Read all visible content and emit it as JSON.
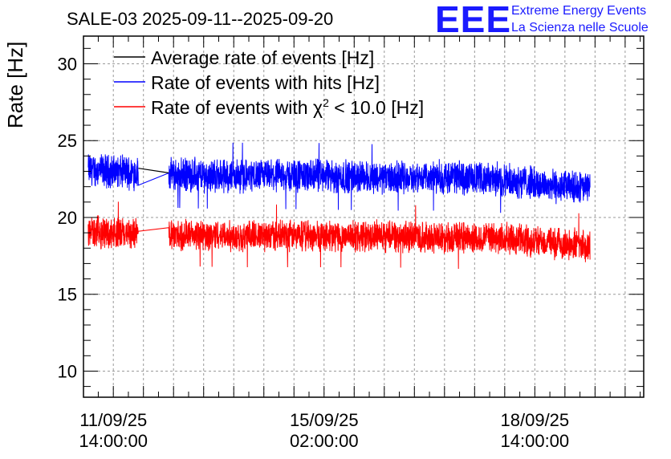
{
  "header": {
    "title": "SALE-03 2025-09-11--2025-09-20",
    "logo_text": "EEE",
    "logo_line1": "Extreme Energy Events",
    "logo_line2": "La Scienza nelle Scuole"
  },
  "chart_data": {
    "type": "line",
    "title": "SALE-03 2025-09-11--2025-09-20",
    "xlabel": "",
    "ylabel": "Rate [Hz]",
    "ylim": [
      8.3,
      31.8
    ],
    "y_ticks": [
      10,
      15,
      20,
      25,
      30
    ],
    "grid": true,
    "legend_position": "top-left",
    "x_unit": "hours since 2025-09-11 00:00",
    "xlim": [
      2.1,
      225.4
    ],
    "x_ticks": [
      {
        "value": 14,
        "label_date": "11/09/25",
        "label_time": "14:00:00"
      },
      {
        "value": 98,
        "label_date": "15/09/25",
        "label_time": "02:00:00"
      },
      {
        "value": 182,
        "label_date": "18/09/25",
        "label_time": "14:00:00"
      }
    ],
    "gap": {
      "from": 24,
      "to": 36
    },
    "series": [
      {
        "name": "Average rate of events [Hz]",
        "legend_text": "Average rate of events [Hz]",
        "color": "#000000",
        "x": [
          24,
          36
        ],
        "y": [
          23.2,
          22.9
        ]
      },
      {
        "name": "Rate of events with hits [Hz]",
        "legend_text": "Rate of events with hits [Hz]",
        "color": "#0000ff",
        "x_start": 4,
        "x_end": 204,
        "keypoints_x": [
          4,
          14,
          24,
          36,
          60,
          90,
          120,
          150,
          175,
          190,
          204
        ],
        "keypoints_y": [
          23.1,
          23.0,
          22.9,
          22.8,
          22.7,
          22.7,
          22.6,
          22.6,
          22.4,
          22.0,
          21.9
        ],
        "spread": 1.8,
        "peak_max": 25.6,
        "peak_min": 20.3
      },
      {
        "name_prefix": "Rate of events with ",
        "chi_symbol": "χ",
        "chi_exponent": "2",
        "name_suffix": " < 10.0 [Hz]",
        "color": "#ff0000",
        "x_start": 4,
        "x_end": 204,
        "keypoints_x": [
          4,
          14,
          24,
          36,
          60,
          90,
          120,
          150,
          175,
          190,
          204
        ],
        "keypoints_y": [
          19.1,
          19.0,
          18.9,
          18.9,
          18.8,
          18.8,
          18.8,
          18.7,
          18.6,
          18.3,
          18.2
        ],
        "spread": 1.7,
        "peak_max": 22.0,
        "peak_min": 16.2
      }
    ]
  }
}
